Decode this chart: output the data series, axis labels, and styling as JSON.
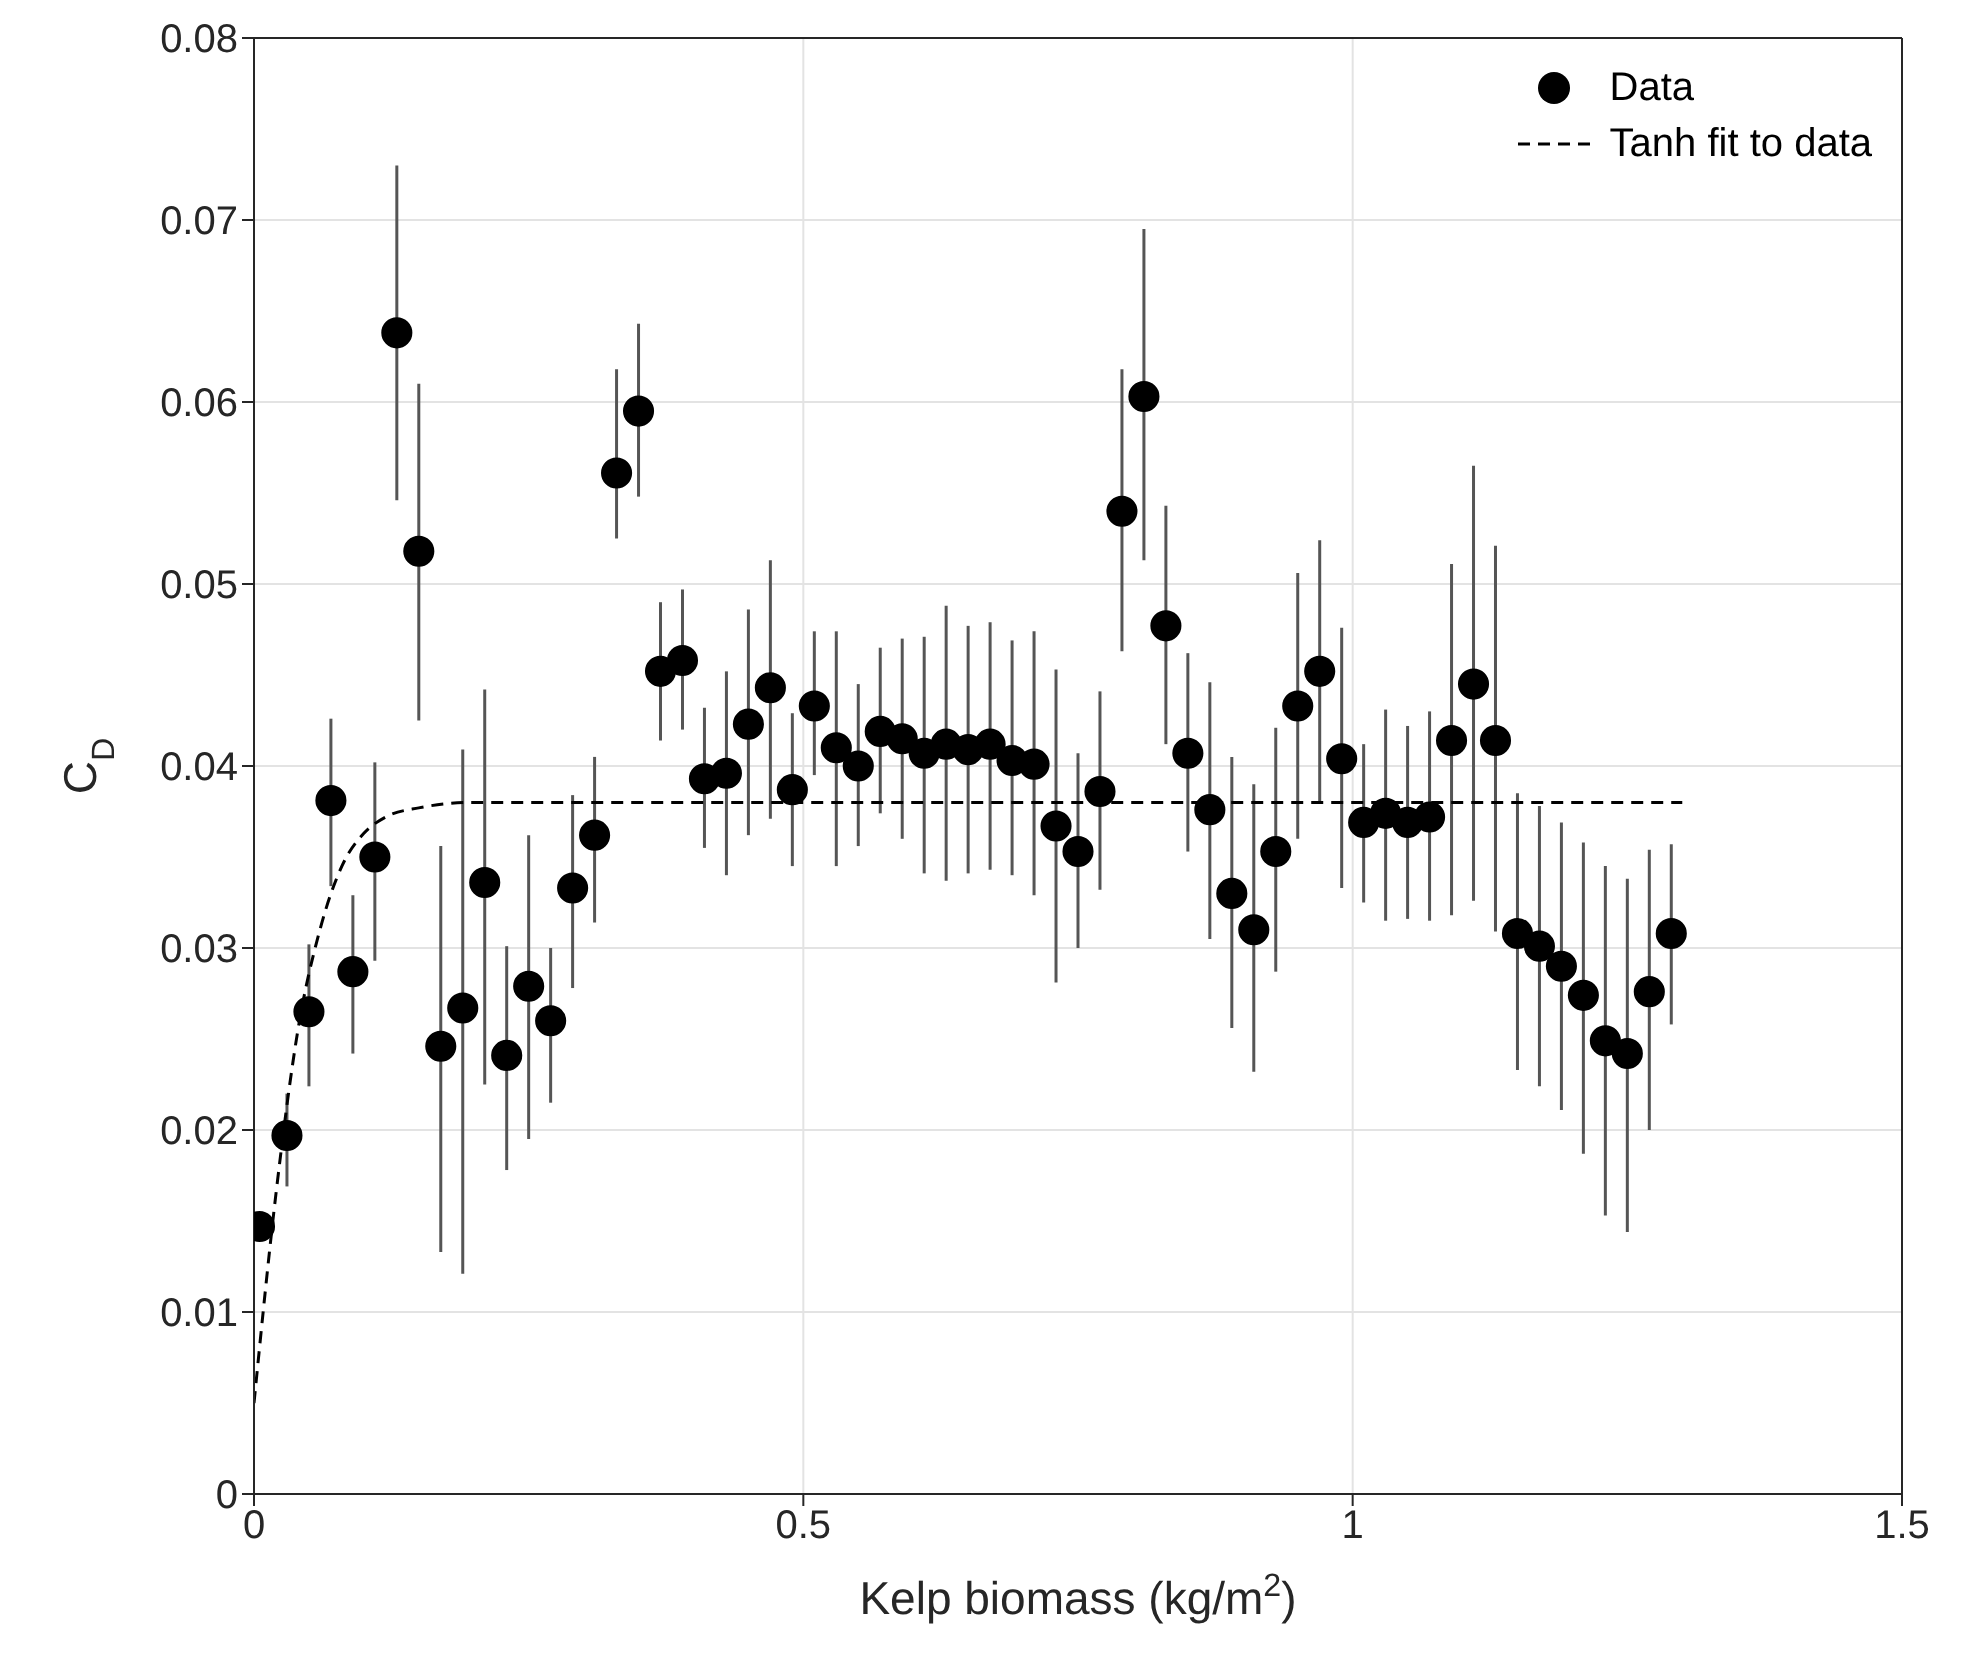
{
  "chart_data": {
    "type": "scatter",
    "xlabel": "Kelp biomass (kg/m$^{2}$)",
    "ylabel": "C$_{D}$",
    "xlim": [
      0,
      1.5
    ],
    "xticks": [
      0,
      0.5,
      1,
      1.5
    ],
    "ylim": [
      0,
      0.08
    ],
    "yticks": [
      0,
      0.01,
      0.02,
      0.03,
      0.04,
      0.05,
      0.06,
      0.07,
      0.08
    ],
    "grid": true,
    "legend": "top right",
    "series": [
      {
        "name": "Data",
        "color": "#000000",
        "marker": "circle",
        "x": [
          0.005,
          0.03,
          0.05,
          0.07,
          0.09,
          0.11,
          0.13,
          0.15,
          0.17,
          0.19,
          0.21,
          0.23,
          0.25,
          0.27,
          0.29,
          0.31,
          0.33,
          0.35,
          0.37,
          0.39,
          0.41,
          0.43,
          0.45,
          0.47,
          0.49,
          0.51,
          0.53,
          0.55,
          0.57,
          0.59,
          0.61,
          0.63,
          0.65,
          0.67,
          0.69,
          0.71,
          0.73,
          0.75,
          0.77,
          0.79,
          0.81,
          0.83,
          0.85,
          0.87,
          0.89,
          0.91,
          0.93,
          0.95,
          0.97,
          0.99,
          1.01,
          1.03,
          1.05,
          1.07,
          1.09,
          1.11,
          1.13,
          1.15,
          1.17,
          1.19,
          1.21,
          1.23,
          1.25,
          1.27,
          1.29
        ],
        "values": [
          0.0147,
          0.0197,
          0.0265,
          0.0381,
          0.0287,
          0.035,
          0.0638,
          0.0518,
          0.0246,
          0.0267,
          0.0336,
          0.0241,
          0.0279,
          0.026,
          0.0333,
          0.0362,
          0.0561,
          0.0595,
          0.0452,
          0.0458,
          0.0393,
          0.0396,
          0.0423,
          0.0443,
          0.0387,
          0.0433,
          0.041,
          0.04,
          0.0419,
          0.0415,
          0.0407,
          0.0412,
          0.0409,
          0.0412,
          0.0403,
          0.0401,
          0.0367,
          0.0353,
          0.0386,
          0.054,
          0.0603,
          0.0477,
          0.0407,
          0.0376,
          0.033,
          0.031,
          0.0353,
          0.0433,
          0.0452,
          0.0404,
          0.0369,
          0.0374,
          0.0369,
          0.0372,
          0.0414,
          0.0445,
          0.0414,
          0.0308,
          0.0301,
          0.029,
          0.0274,
          0.0249,
          0.0242,
          0.0276,
          0.0308
        ],
        "errors": [
          null,
          [
            0.0169,
            0.022
          ],
          [
            0.0224,
            0.0302
          ],
          [
            0.0334,
            0.0426
          ],
          [
            0.0242,
            0.0329
          ],
          [
            0.0293,
            0.0402
          ],
          [
            0.0546,
            0.073
          ],
          [
            0.0425,
            0.061
          ],
          [
            0.0133,
            0.0356
          ],
          [
            0.0121,
            0.0409
          ],
          [
            0.0225,
            0.0442
          ],
          [
            0.0178,
            0.0301
          ],
          [
            0.0195,
            0.0362
          ],
          [
            0.0215,
            0.03
          ],
          [
            0.0278,
            0.0384
          ],
          [
            0.0314,
            0.0405
          ],
          [
            0.0525,
            0.0618
          ],
          [
            0.0548,
            0.0643
          ],
          [
            0.0414,
            0.049
          ],
          [
            0.042,
            0.0497
          ],
          [
            0.0355,
            0.0432
          ],
          [
            0.034,
            0.0452
          ],
          [
            0.0362,
            0.0486
          ],
          [
            0.0371,
            0.0513
          ],
          [
            0.0345,
            0.0429
          ],
          [
            0.0395,
            0.0474
          ],
          [
            0.0345,
            0.0474
          ],
          [
            0.0356,
            0.0445
          ],
          [
            0.0374,
            0.0465
          ],
          [
            0.036,
            0.047
          ],
          [
            0.0341,
            0.0471
          ],
          [
            0.0337,
            0.0488
          ],
          [
            0.0341,
            0.0477
          ],
          [
            0.0343,
            0.0479
          ],
          [
            0.034,
            0.0469
          ],
          [
            0.0329,
            0.0474
          ],
          [
            0.0281,
            0.0453
          ],
          [
            0.03,
            0.0407
          ],
          [
            0.0332,
            0.0441
          ],
          [
            0.0463,
            0.0618
          ],
          [
            0.0513,
            0.0695
          ],
          [
            0.0412,
            0.0543
          ],
          [
            0.0353,
            0.0462
          ],
          [
            0.0305,
            0.0446
          ],
          [
            0.0256,
            0.0405
          ],
          [
            0.0232,
            0.039
          ],
          [
            0.0287,
            0.0421
          ],
          [
            0.036,
            0.0506
          ],
          [
            0.038,
            0.0524
          ],
          [
            0.0333,
            0.0476
          ],
          [
            0.0325,
            0.0412
          ],
          [
            0.0315,
            0.0431
          ],
          [
            0.0316,
            0.0422
          ],
          [
            0.0315,
            0.043
          ],
          [
            0.0318,
            0.0511
          ],
          [
            0.0326,
            0.0565
          ],
          [
            0.0309,
            0.0521
          ],
          [
            0.0233,
            0.0385
          ],
          [
            0.0224,
            0.0378
          ],
          [
            0.0211,
            0.0369
          ],
          [
            0.0187,
            0.0358
          ],
          [
            0.0153,
            0.0345
          ],
          [
            0.0144,
            0.0338
          ],
          [
            0.02,
            0.0354
          ],
          [
            0.0258,
            0.0357
          ]
        ]
      },
      {
        "name": "Tanh fit to data",
        "type": "line",
        "color": "#000000",
        "marker": "none",
        "line_style": "dashed",
        "x": [
          0,
          0.02,
          0.04,
          0.06,
          0.08,
          0.1,
          0.12,
          0.15,
          0.2,
          0.3,
          1.3
        ],
        "values": [
          0.005,
          0.0165,
          0.0255,
          0.031,
          0.0345,
          0.0363,
          0.0372,
          0.0377,
          0.038,
          0.038,
          0.038
        ]
      }
    ]
  }
}
